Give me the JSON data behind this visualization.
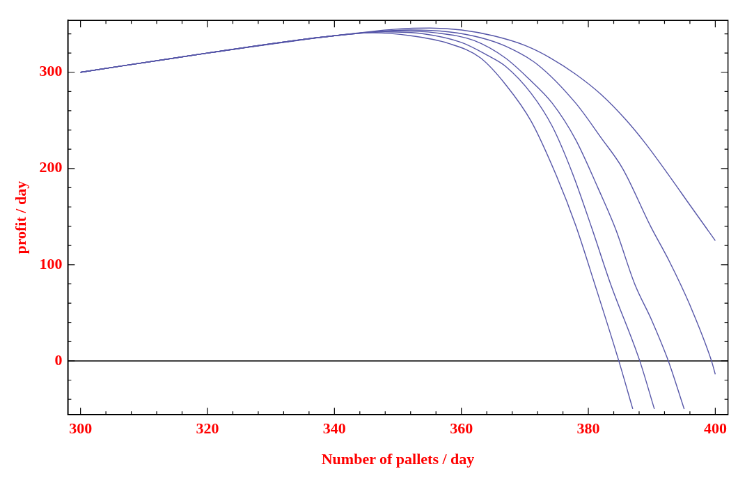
{
  "chart_data": {
    "type": "line",
    "xlabel": "Number of pallets / day",
    "ylabel": "profit / day",
    "xlim": [
      298,
      402
    ],
    "ylim": [
      -56,
      354
    ],
    "xticks": [
      300,
      {
        "value": 304,
        "label": null
      },
      {
        "value": 308,
        "label": null
      },
      {
        "value": 312,
        "label": null
      },
      {
        "value": 316,
        "label": null
      },
      320,
      {
        "value": 324,
        "label": null
      },
      {
        "value": 328,
        "label": null
      },
      {
        "value": 332,
        "label": null
      },
      {
        "value": 336,
        "label": null
      },
      340,
      {
        "value": 344,
        "label": null
      },
      {
        "value": 348,
        "label": null
      },
      {
        "value": 352,
        "label": null
      },
      {
        "value": 356,
        "label": null
      },
      360,
      {
        "value": 364,
        "label": null
      },
      {
        "value": 368,
        "label": null
      },
      {
        "value": 372,
        "label": null
      },
      {
        "value": 376,
        "label": null
      },
      380,
      {
        "value": 384,
        "label": null
      },
      {
        "value": 388,
        "label": null
      },
      {
        "value": 392,
        "label": null
      },
      {
        "value": 396,
        "label": null
      },
      400
    ],
    "yticks": [
      {
        "value": -40,
        "label": null
      },
      {
        "value": -20,
        "label": null
      },
      0,
      {
        "value": 20,
        "label": null
      },
      {
        "value": 40,
        "label": null
      },
      {
        "value": 60,
        "label": null
      },
      {
        "value": 80,
        "label": null
      },
      100,
      {
        "value": 120,
        "label": null
      },
      {
        "value": 140,
        "label": null
      },
      {
        "value": 160,
        "label": null
      },
      {
        "value": 180,
        "label": null
      },
      200,
      {
        "value": 220,
        "label": null
      },
      {
        "value": 240,
        "label": null
      },
      {
        "value": 260,
        "label": null
      },
      {
        "value": 280,
        "label": null
      },
      300,
      {
        "value": 320,
        "label": null
      },
      {
        "value": 340,
        "label": null
      }
    ],
    "grid": false,
    "legend": false,
    "marker": "none",
    "line_style": "solid",
    "ref_lines": [
      {
        "axis": "y",
        "value": 0,
        "color": "#000000"
      }
    ],
    "series": [
      {
        "color": "#5656a8",
        "x": [
          300,
          320,
          340,
          346,
          352,
          358,
          363,
          367,
          371,
          375,
          378,
          381,
          384.8,
          387
        ],
        "values": [
          300,
          320,
          338,
          341,
          338,
          330,
          315,
          287,
          249,
          192,
          141,
          80,
          0,
          -50
        ]
      },
      {
        "color": "#5656a8",
        "x": [
          300,
          320,
          340,
          348,
          354,
          360,
          364,
          367,
          371,
          374.3,
          377.5,
          380.6,
          383.5,
          388.1,
          390.4
        ],
        "values": [
          300,
          320,
          338,
          342,
          340,
          331,
          318,
          306,
          278,
          244,
          195,
          137,
          80,
          0,
          -50
        ]
      },
      {
        "color": "#5656a8",
        "x": [
          300,
          320,
          340,
          350,
          356,
          362,
          366.9,
          370.5,
          374.3,
          378,
          381.5,
          384.3,
          387.3,
          390,
          392.6,
          395.1
        ],
        "values": [
          300,
          320,
          338,
          343,
          341,
          333,
          315,
          294,
          268,
          230,
          180,
          137,
          80,
          42,
          0,
          -50
        ]
      },
      {
        "color": "#5656a8",
        "x": [
          300,
          320,
          340,
          352,
          358,
          363,
          367,
          372,
          378,
          382,
          385.4,
          389.8,
          392.8,
          396,
          399.4,
          400
        ],
        "values": [
          300,
          320,
          338,
          344,
          342,
          336,
          327,
          308,
          268,
          232,
          200,
          140,
          103,
          58,
          0,
          -14
        ]
      },
      {
        "color": "#5656a8",
        "x": [
          300,
          320,
          340,
          350,
          355,
          360,
          365,
          370,
          374,
          378,
          382,
          386,
          389,
          393,
          396,
          400
        ],
        "values": [
          300,
          320,
          338,
          345,
          346,
          344,
          338,
          328,
          315,
          298,
          277,
          250,
          226,
          190,
          162,
          125
        ]
      }
    ]
  }
}
